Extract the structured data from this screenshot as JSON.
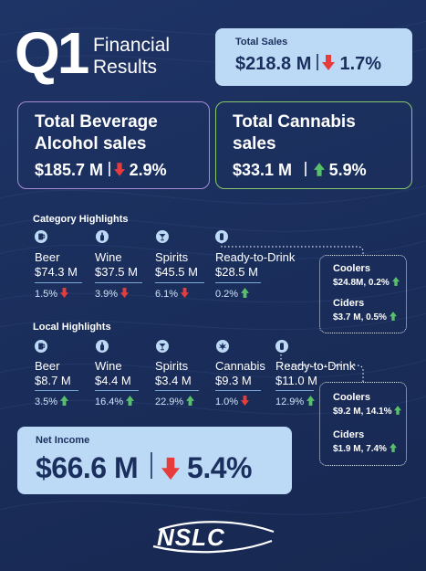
{
  "header": {
    "q": "Q1",
    "line1": "Financial",
    "line2": "Results"
  },
  "total_sales": {
    "label": "Total Sales",
    "value": "$218.8 M",
    "change": "1.7%",
    "direction": "down"
  },
  "beverage_alcohol": {
    "title1": "Total Beverage",
    "title2": "Alcohol sales",
    "value": "$185.7 M",
    "change": "2.9%",
    "direction": "down"
  },
  "cannabis": {
    "title1": "Total Cannabis",
    "title2": "sales",
    "value": "$33.1 M",
    "change": "5.9%",
    "direction": "up"
  },
  "category": {
    "heading": "Category Highlights",
    "items": [
      {
        "name": "Beer",
        "value": "$74.3 M",
        "change": "1.5%",
        "direction": "down",
        "icon": "beer-icon"
      },
      {
        "name": "Wine",
        "value": "$37.5 M",
        "change": "3.9%",
        "direction": "down",
        "icon": "wine-bottle-icon"
      },
      {
        "name": "Spirits",
        "value": "$45.5 M",
        "change": "6.1%",
        "direction": "down",
        "icon": "cocktail-glass-icon"
      },
      {
        "name": "Ready-to-Drink",
        "value": "$28.5 M",
        "change": "0.2%",
        "direction": "up",
        "icon": "can-icon"
      }
    ],
    "rtd_breakdown": [
      {
        "name": "Coolers",
        "value": "$24.8M, 0.2%",
        "direction": "up"
      },
      {
        "name": "Ciders",
        "value": "$3.7 M, 0.5%",
        "direction": "up"
      }
    ]
  },
  "local": {
    "heading": "Local Highlights",
    "items": [
      {
        "name": "Beer",
        "value": "$8.7 M",
        "change": "3.5%",
        "direction": "up",
        "icon": "beer-icon"
      },
      {
        "name": "Wine",
        "value": "$4.4 M",
        "change": "16.4%",
        "direction": "up",
        "icon": "wine-bottle-icon"
      },
      {
        "name": "Spirits",
        "value": "$3.4 M",
        "change": "22.9%",
        "direction": "up",
        "icon": "cocktail-glass-icon"
      },
      {
        "name": "Cannabis",
        "value": "$9.3 M",
        "change": "1.0%",
        "direction": "down",
        "icon": "cannabis-leaf-icon"
      },
      {
        "name": "Ready-to-Drink",
        "value": "$11.0 M",
        "change": "12.9%",
        "direction": "up",
        "icon": "can-icon"
      }
    ],
    "rtd_breakdown": [
      {
        "name": "Coolers",
        "value": "$9.2 M, 14.1%",
        "direction": "up"
      },
      {
        "name": "Ciders",
        "value": "$1.9 M, 7.4%",
        "direction": "up"
      }
    ]
  },
  "net_income": {
    "label": "Net Income",
    "value": "$66.6 M",
    "change": "5.4%",
    "direction": "down"
  },
  "logo": {
    "text": "NSLC"
  },
  "colors": {
    "background": "#1b2f5e",
    "light_panel": "#bcdaf6",
    "down": "#e63c3c",
    "up": "#59c06a",
    "beverage_border": "#a68bd3",
    "cannabis_border": "#86c86a"
  }
}
